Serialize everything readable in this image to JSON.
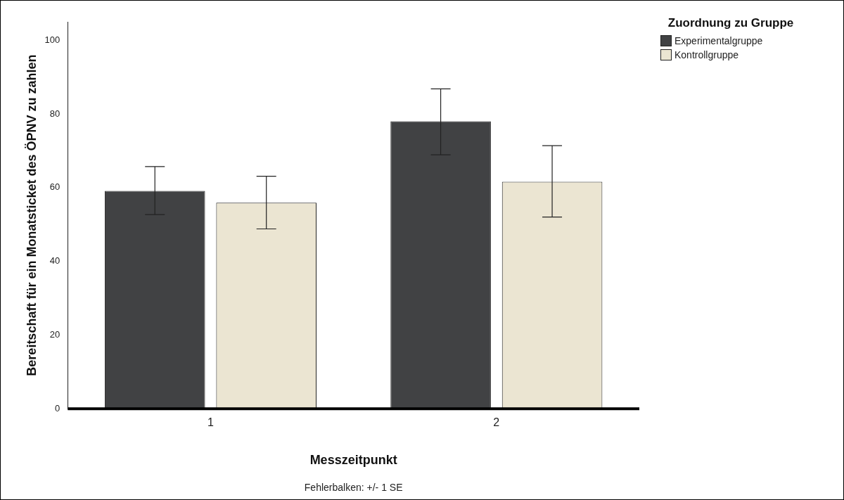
{
  "chart_data": {
    "type": "bar",
    "categories": [
      "1",
      "2"
    ],
    "series": [
      {
        "name": "Experimentalgruppe",
        "color": "#414244",
        "values": [
          59.1,
          78.0
        ],
        "errors": [
          [
            52.7,
            65.7
          ],
          [
            68.9,
            86.8
          ]
        ]
      },
      {
        "name": "Kontrollgruppe",
        "color": "#ebe5d2",
        "values": [
          55.9,
          61.6
        ],
        "errors": [
          [
            48.8,
            63.1
          ],
          [
            52.0,
            71.4
          ]
        ]
      }
    ],
    "xlabel": "Messzeitpunkt",
    "ylabel": "Bereitschaft für ein Monatsticket des ÖPNV zu zahlen",
    "legend_title": "Zuordnung zu Gruppe",
    "ylim": [
      0,
      105
    ],
    "yticks": [
      0,
      20,
      40,
      60,
      80,
      100
    ],
    "grid": false,
    "legend": "top right",
    "annotations": [
      "Fehlerbalken: +/- 1 SE"
    ]
  }
}
